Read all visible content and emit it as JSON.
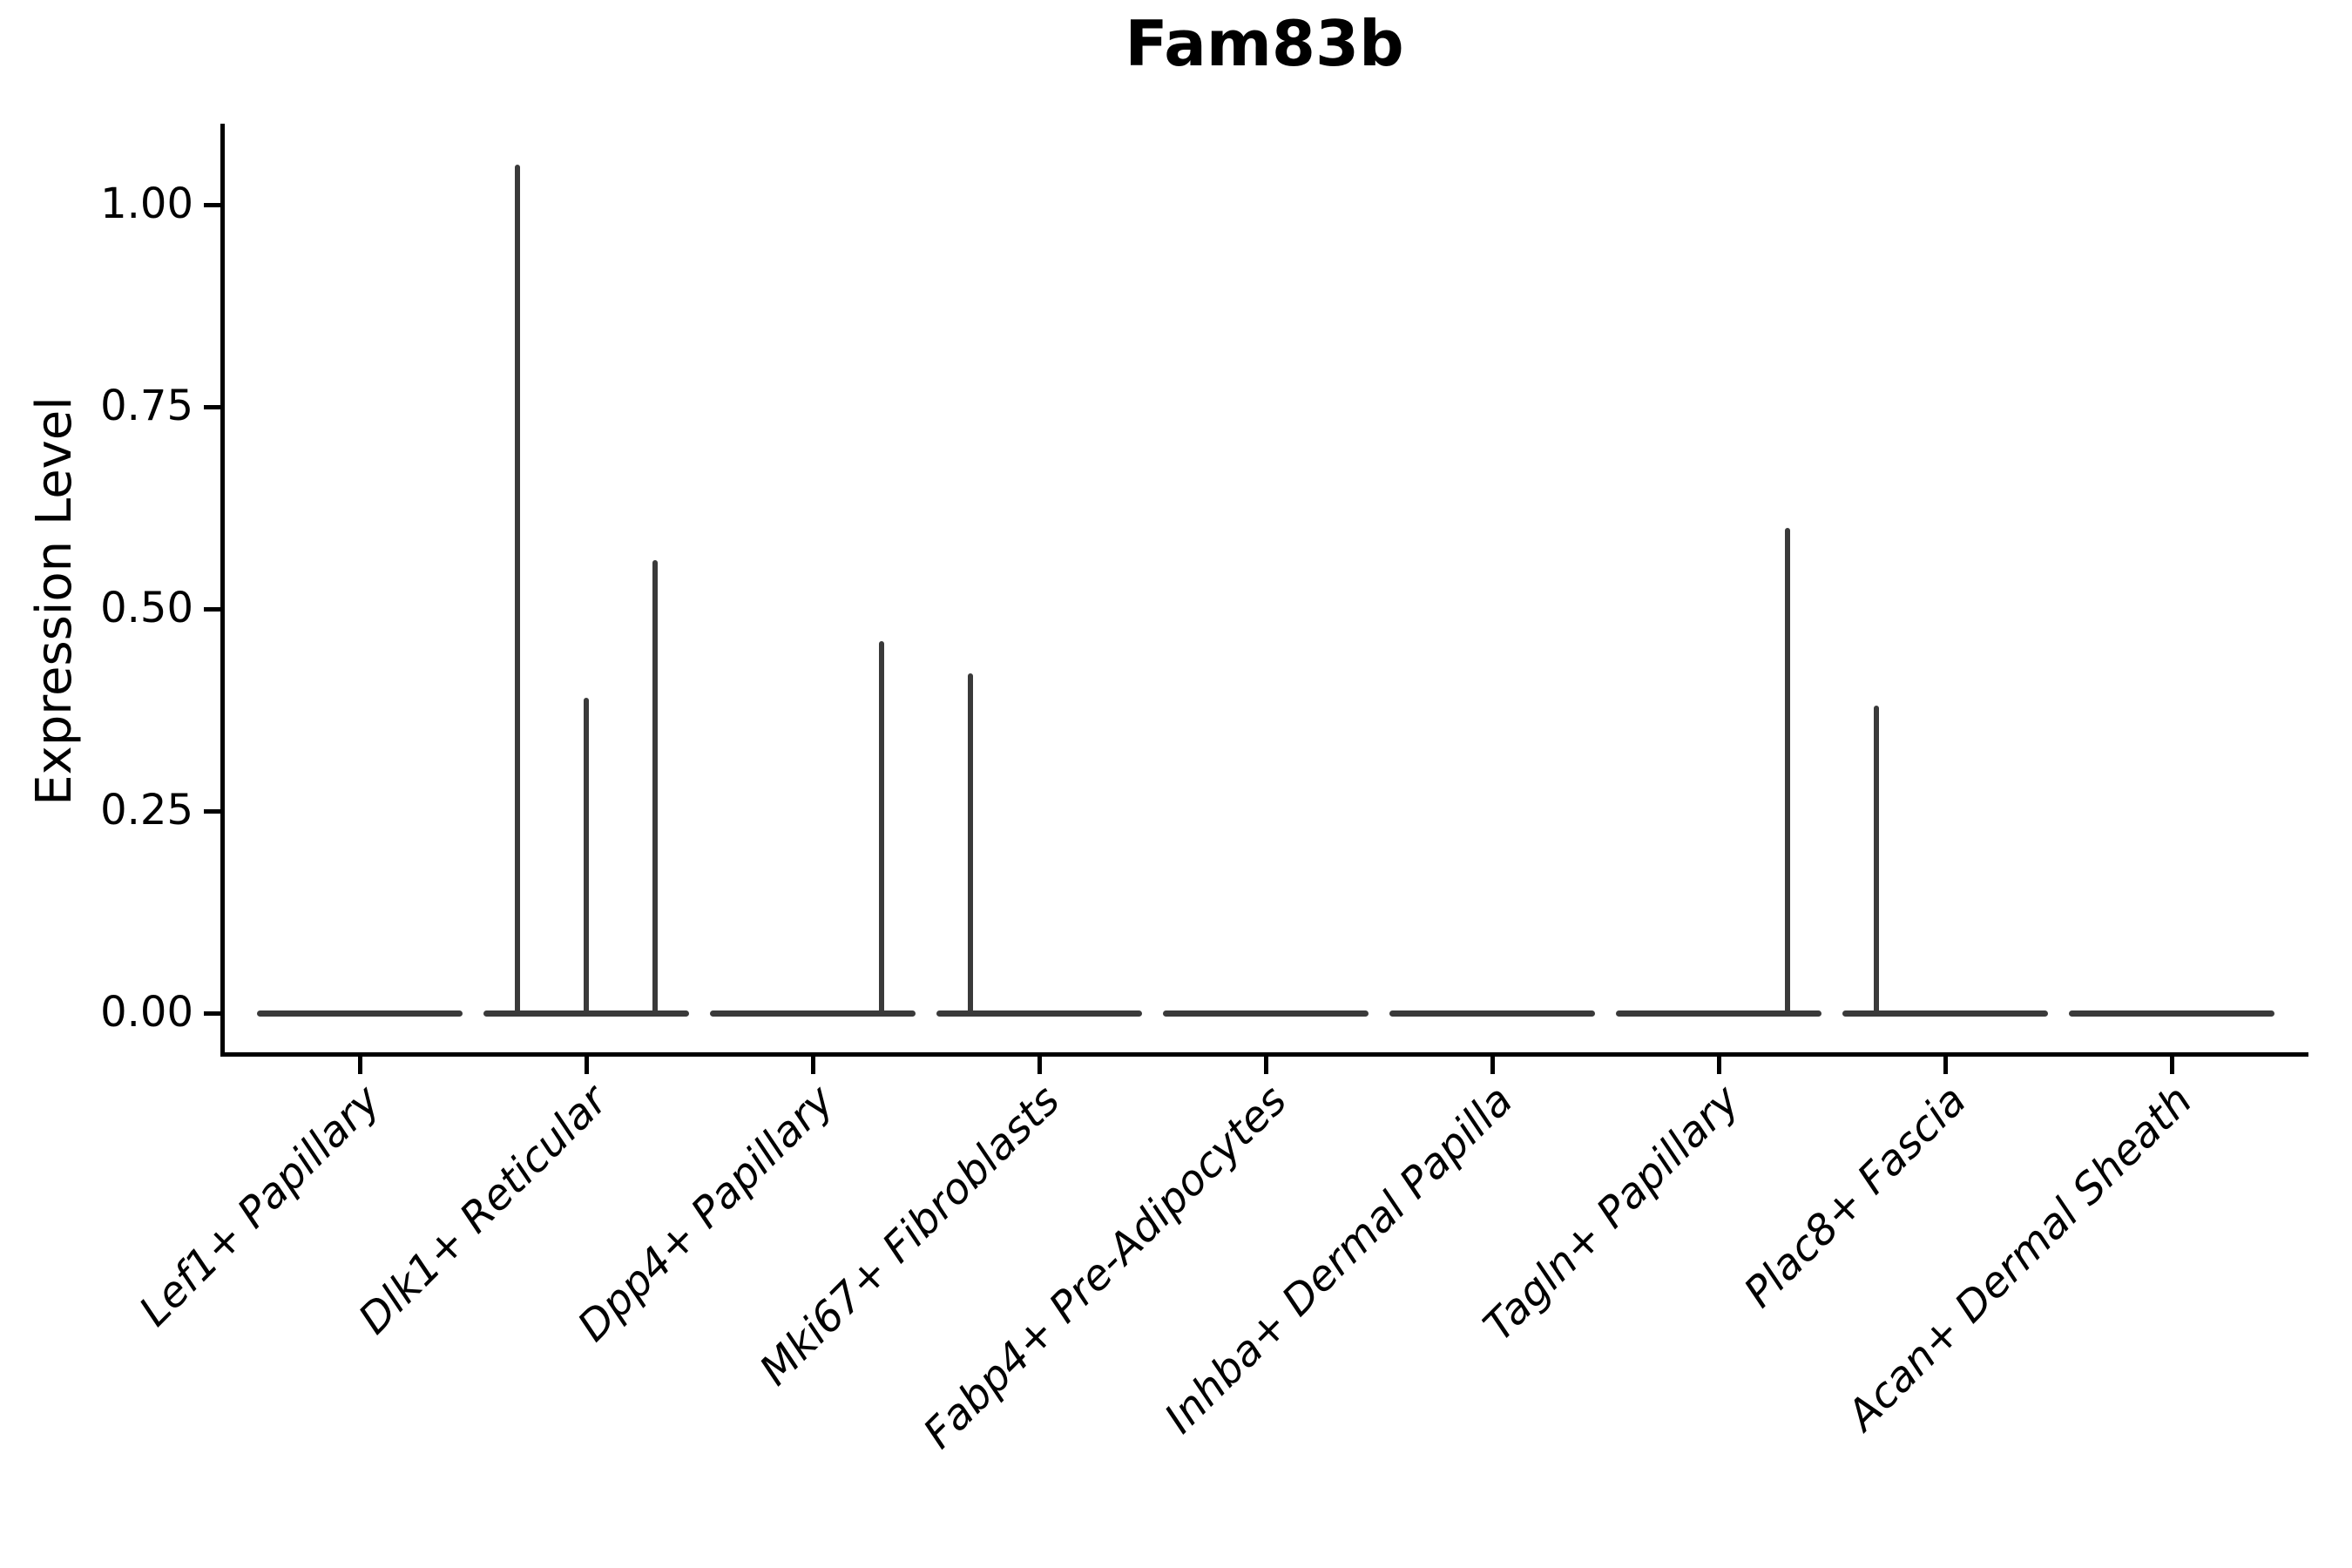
{
  "figure": {
    "title": "Fam83b",
    "background": "#ffffff"
  },
  "chart_data": {
    "type": "violin",
    "title": "Fam83b",
    "xlabel": "",
    "ylabel": "Expression Level",
    "categories": [
      "Lef1+ Papillary",
      "Dlk1+ Reticular",
      "Dpp4+ Papillary",
      "Mki67+ Fibroblasts",
      "Fabp4+ Pre-Adipocytes",
      "Inhba+ Dermal Papilla",
      "Tagln+ Papillary",
      "Plac8+ Fascia",
      "Acan+ Dermal Sheath"
    ],
    "ytick_labels": [
      "0.00",
      "0.25",
      "0.50",
      "0.75",
      "1.00"
    ],
    "ytick_values": [
      0,
      0.25,
      0.5,
      0.75,
      1.0
    ],
    "ylim": [
      -0.05,
      1.1
    ],
    "grid": false,
    "legend": null,
    "violins_per_category": 3,
    "sub_violin_positions": [
      "left",
      "center",
      "right"
    ],
    "series": [
      {
        "category": "Lef1+ Papillary",
        "max_values": [
          0,
          0,
          0
        ]
      },
      {
        "category": "Dlk1+ Reticular",
        "max_values": [
          1.05,
          0.39,
          0.56
        ]
      },
      {
        "category": "Dpp4+ Papillary",
        "max_values": [
          0,
          0,
          0.46
        ]
      },
      {
        "category": "Mki67+ Fibroblasts",
        "max_values": [
          0.42,
          0,
          0
        ]
      },
      {
        "category": "Fabp4+ Pre-Adipocytes",
        "max_values": [
          0,
          0,
          0
        ]
      },
      {
        "category": "Inhba+ Dermal Papilla",
        "max_values": [
          0,
          0,
          0
        ]
      },
      {
        "category": "Tagln+ Papillary",
        "max_values": [
          0,
          0,
          0.6
        ]
      },
      {
        "category": "Plac8+ Fascia",
        "max_values": [
          0.38,
          0,
          0
        ]
      },
      {
        "category": "Acan+ Dermal Sheath",
        "max_values": [
          0,
          0,
          0
        ]
      }
    ],
    "baseline_value": 0,
    "colors": {
      "violin_stroke": "#3a3a3a",
      "axis": "#000000",
      "text": "#000000",
      "background": "#ffffff"
    }
  }
}
